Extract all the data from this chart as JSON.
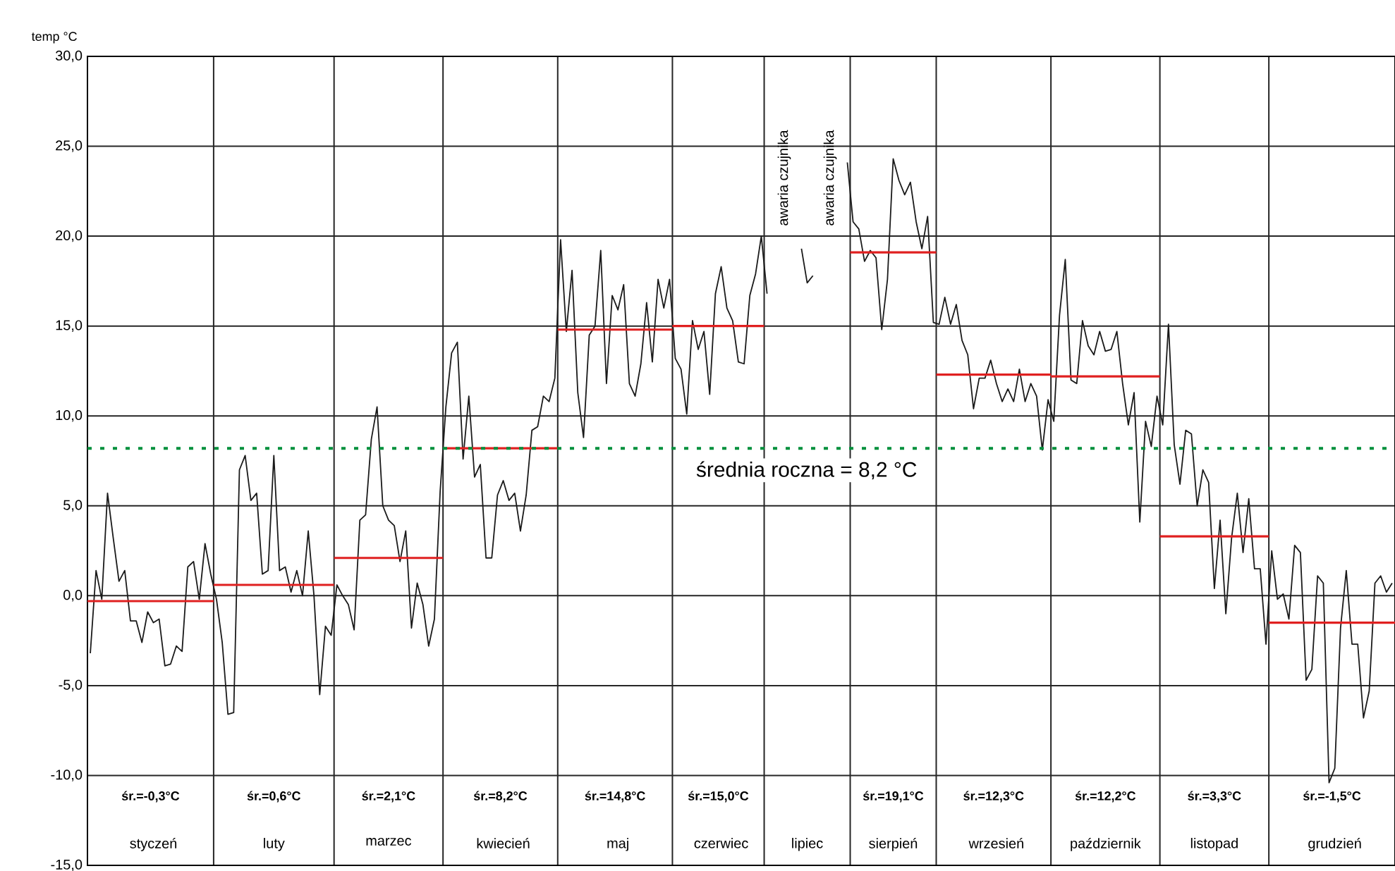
{
  "chart_data": {
    "type": "line",
    "ylabel": "temp °C",
    "ylim": [
      -15,
      30
    ],
    "categories": [
      null,
      null,
      null,
      null,
      null,
      null,
      null,
      null,
      null,
      null,
      null,
      "styczeń",
      null,
      null,
      null,
      null,
      null,
      null,
      null,
      null,
      null,
      null,
      null,
      null,
      null,
      null,
      null,
      null,
      null,
      null,
      null,
      null,
      "luty",
      null,
      null,
      null,
      null,
      null,
      null,
      null,
      null,
      null,
      null,
      null,
      null,
      null,
      null,
      null,
      null,
      null,
      null,
      null,
      "marzec",
      null,
      null,
      null,
      null,
      null,
      null,
      null,
      null,
      null,
      null,
      null,
      null,
      null,
      null,
      null,
      null,
      null,
      null,
      null,
      "kwiecień",
      null,
      null,
      null,
      null,
      null,
      null,
      null,
      null,
      null,
      null,
      null,
      null,
      null,
      null,
      null,
      null,
      null,
      null,
      null,
      "maj",
      null,
      null,
      null,
      null,
      null,
      null,
      null,
      null,
      null,
      null,
      null,
      null,
      null,
      null,
      null,
      null,
      null,
      "czerwiec",
      null,
      null,
      null,
      null,
      null,
      null,
      null,
      null,
      null,
      null,
      null,
      null,
      null,
      null,
      "lipiec",
      null,
      null,
      null,
      null,
      null,
      null,
      null,
      null,
      null,
      null,
      null,
      null,
      null,
      null,
      "sierpień",
      null,
      null,
      null,
      null,
      null,
      null,
      null,
      null,
      null,
      null,
      null,
      null,
      null,
      null,
      null,
      null,
      null,
      "wrzesień",
      null,
      null,
      null,
      null,
      null,
      null,
      null,
      null,
      null,
      null,
      null,
      null,
      null,
      null,
      null,
      null,
      null,
      null,
      "październik",
      null,
      null,
      null,
      null,
      null,
      null,
      null,
      null,
      null,
      null,
      null,
      null,
      null,
      null,
      null,
      null,
      null,
      null,
      "listopad",
      null,
      null,
      null,
      null,
      null,
      null,
      null,
      null,
      null,
      null,
      null,
      null,
      null,
      null,
      null,
      null,
      null,
      null,
      null,
      null,
      "grudzień",
      null,
      null,
      null,
      null,
      null,
      null,
      null,
      null,
      null,
      null
    ],
    "yticks": [
      {
        "value": -15,
        "label": "-15,0"
      },
      {
        "value": -10,
        "label": "-10,0"
      },
      {
        "value": -5,
        "label": "-5,0"
      },
      {
        "value": 0,
        "label": "0,0"
      },
      {
        "value": 5,
        "label": "5,0"
      },
      {
        "value": 10,
        "label": "10,0"
      },
      {
        "value": 15,
        "label": "15,0"
      },
      {
        "value": 20,
        "label": "20,0"
      },
      {
        "value": 25,
        "label": "25,0"
      },
      {
        "value": 30,
        "label": "30,0"
      }
    ],
    "grid": true,
    "series": [
      {
        "color": "#1a1a1a",
        "values": [
          -3.2,
          1.4,
          -0.2,
          5.7,
          3.2,
          0.8,
          1.4,
          -1.4,
          -1.4,
          -2.6,
          -0.9,
          -1.5,
          -1.3,
          -3.9,
          -3.8,
          -2.8,
          -3.1,
          1.6,
          1.9,
          -0.2,
          2.9,
          1.2,
          -0.2,
          -2.6,
          -6.6,
          -6.5,
          7.0,
          7.8,
          5.3,
          5.7,
          1.2,
          1.4,
          7.8,
          1.4,
          1.6,
          0.2,
          1.4,
          0.0,
          3.6,
          0.0,
          -5.5,
          -1.7,
          -2.2,
          0.6,
          0.0,
          -0.5,
          -1.9,
          4.2,
          4.5,
          8.7,
          10.5,
          5.0,
          4.2,
          3.9,
          1.9,
          3.6,
          -1.8,
          0.7,
          -0.5,
          -2.8,
          -1.3,
          5.8,
          10.5,
          13.5,
          14.1,
          7.6,
          11.1,
          6.6,
          7.3,
          2.1,
          2.1,
          5.6,
          6.4,
          5.3,
          5.7,
          3.6,
          5.6,
          9.2,
          9.4,
          11.1,
          10.8,
          12.1,
          19.8,
          14.7,
          18.1,
          11.3,
          8.8,
          14.5,
          15.0,
          19.2,
          11.8,
          16.7,
          15.9,
          17.3,
          11.8,
          11.1,
          12.9,
          16.3,
          13.0,
          17.6,
          16.0,
          17.6,
          13.2,
          12.6,
          10.1,
          15.3,
          13.7,
          14.7,
          11.2,
          16.8,
          18.3,
          16.0,
          15.3,
          13.0,
          12.9,
          16.7,
          17.9,
          20.0,
          16.8,
          null,
          null,
          null,
          null,
          null,
          19.3,
          17.4,
          17.8,
          null,
          null,
          null,
          null,
          null,
          24.1,
          20.8,
          20.4,
          18.6,
          19.2,
          18.8,
          14.8,
          17.6,
          24.3,
          23.1,
          22.3,
          23.0,
          20.8,
          19.3,
          21.1,
          15.2,
          15.1,
          16.6,
          15.1,
          16.2,
          14.2,
          13.4,
          10.4,
          12.1,
          12.1,
          13.1,
          11.8,
          10.8,
          11.5,
          10.8,
          12.6,
          10.8,
          11.8,
          11.1,
          8.1,
          10.9,
          9.7,
          15.6,
          18.7,
          12.0,
          11.8,
          15.3,
          13.9,
          13.4,
          14.7,
          13.6,
          13.7,
          14.7,
          11.8,
          9.5,
          11.3,
          4.1,
          9.7,
          8.3,
          11.1,
          9.5,
          15.1,
          8.4,
          6.2,
          9.2,
          9.0,
          5.0,
          7.0,
          6.3,
          0.4,
          4.2,
          -1.0,
          3.2,
          5.7,
          2.4,
          5.4,
          1.5,
          1.5,
          -2.7,
          2.5,
          -0.2,
          0.1,
          -1.3,
          2.8,
          2.4,
          -4.7,
          -4.1,
          1.1,
          0.7,
          -10.4,
          -9.6,
          -1.8,
          1.4,
          -2.7,
          -2.7,
          -6.8,
          -5.3,
          0.7,
          1.1,
          0.2,
          0.7
        ]
      },
      {
        "color": "#e02020",
        "values": [
          -0.3,
          -0.3,
          -0.3,
          -0.3,
          -0.3,
          -0.3,
          -0.3,
          -0.3,
          -0.3,
          -0.3,
          -0.3,
          -0.3,
          -0.3,
          -0.3,
          -0.3,
          -0.3,
          -0.3,
          -0.3,
          -0.3,
          -0.3,
          -0.3,
          -0.3,
          0.6,
          0.6,
          0.6,
          0.6,
          0.6,
          0.6,
          0.6,
          0.6,
          0.6,
          0.6,
          0.6,
          0.6,
          0.6,
          0.6,
          0.6,
          0.6,
          0.6,
          0.6,
          0.6,
          0.6,
          0.6,
          2.1,
          2.1,
          2.1,
          2.1,
          2.1,
          2.1,
          2.1,
          2.1,
          2.1,
          2.1,
          2.1,
          2.1,
          2.1,
          2.1,
          2.1,
          2.1,
          2.1,
          2.1,
          2.1,
          8.2,
          8.2,
          8.2,
          8.2,
          8.2,
          8.2,
          8.2,
          8.2,
          8.2,
          8.2,
          8.2,
          8.2,
          8.2,
          8.2,
          8.2,
          8.2,
          8.2,
          8.2,
          8.2,
          8.2,
          14.8,
          14.8,
          14.8,
          14.8,
          14.8,
          14.8,
          14.8,
          14.8,
          14.8,
          14.8,
          14.8,
          14.8,
          14.8,
          14.8,
          14.8,
          14.8,
          14.8,
          14.8,
          14.8,
          14.8,
          15.0,
          15.0,
          15.0,
          15.0,
          15.0,
          15.0,
          15.0,
          15.0,
          15.0,
          15.0,
          15.0,
          15.0,
          15.0,
          15.0,
          15.0,
          15.0,
          null,
          null,
          null,
          null,
          null,
          null,
          null,
          null,
          null,
          null,
          null,
          null,
          null,
          null,
          null,
          19.1,
          19.1,
          19.1,
          19.1,
          19.1,
          19.1,
          19.1,
          19.1,
          19.1,
          19.1,
          19.1,
          19.1,
          19.1,
          19.1,
          19.1,
          12.3,
          12.3,
          12.3,
          12.3,
          12.3,
          12.3,
          12.3,
          12.3,
          12.3,
          12.3,
          12.3,
          12.3,
          12.3,
          12.3,
          12.3,
          12.3,
          12.3,
          12.3,
          12.3,
          12.3,
          12.2,
          12.2,
          12.2,
          12.2,
          12.2,
          12.2,
          12.2,
          12.2,
          12.2,
          12.2,
          12.2,
          12.2,
          12.2,
          12.2,
          12.2,
          12.2,
          12.2,
          12.2,
          12.2,
          3.3,
          3.3,
          3.3,
          3.3,
          3.3,
          3.3,
          3.3,
          3.3,
          3.3,
          3.3,
          3.3,
          3.3,
          3.3,
          3.3,
          3.3,
          3.3,
          3.3,
          3.3,
          3.3,
          -1.5,
          -1.5,
          -1.5,
          -1.5,
          -1.5,
          -1.5,
          -1.5,
          -1.5,
          -1.5,
          -1.5,
          -1.5,
          -1.5,
          -1.5,
          -1.5,
          -1.5,
          -1.5,
          -1.5,
          -1.5,
          -1.5,
          -1.5,
          -1.5,
          -1.5
        ]
      }
    ],
    "ref_lines": [
      {
        "axis": "y",
        "value": 8.2,
        "label": "średnia roczna = 8,2 °C",
        "color": "#00903c",
        "line_style": "dotted"
      }
    ],
    "annotations": [
      "śr.=-0,3°C",
      "śr.=0,6°C",
      "śr.=2,1°C",
      "śr.=8,2°C",
      "śr.=14,8°C",
      "śr.=15,0°C",
      "śr.=19,1°C",
      "śr.=12,3°C",
      "śr.=12,2°C",
      "śr.=3,3°C",
      "śr.=-1,5°C",
      "awaria czujnika",
      "awaria czujnika"
    ]
  }
}
